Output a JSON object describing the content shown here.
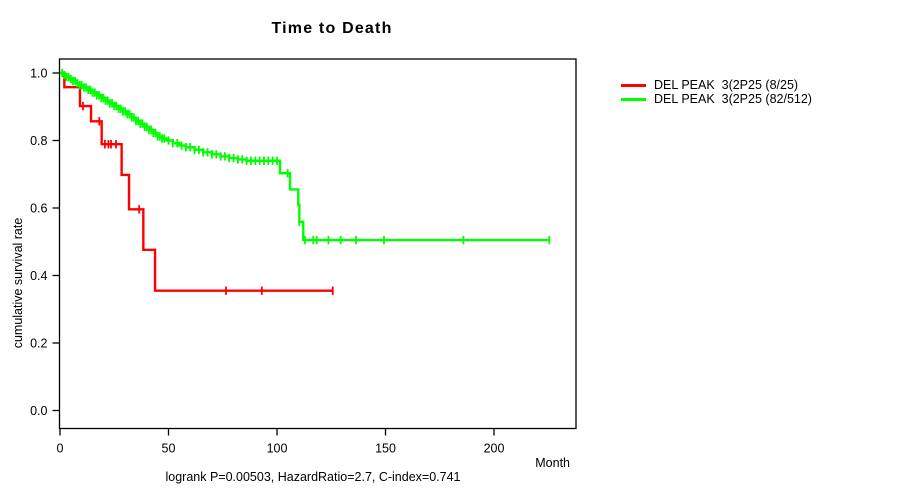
{
  "title": "Time to Death",
  "x_axis": {
    "label": "Month",
    "tick_labels": [
      "0",
      "50",
      "100",
      "150",
      "200"
    ],
    "tick_values": [
      0,
      50,
      100,
      150,
      200
    ]
  },
  "y_axis": {
    "label": "cumulative survival rate",
    "tick_labels": [
      "1.0",
      "0.8",
      "0.6",
      "0.4",
      "0.2",
      "0.0"
    ],
    "tick_values": [
      1.0,
      0.8,
      0.6,
      0.4,
      0.2,
      0.0
    ]
  },
  "footer": "logrank P=0.00503, HazardRatio=2.7, C-index=0.741",
  "legend": [
    {
      "label": "DEL PEAK  3(2P25 (8/25)",
      "color": "#ff0000"
    },
    {
      "label": "DEL PEAK  3(2P25 (82/512)",
      "color": "#00ff00"
    }
  ],
  "chart_data": {
    "type": "line",
    "subtype": "kaplan-meier-step",
    "title": "Time to Death",
    "xlabel": "Month",
    "ylabel": "cumulative survival rate",
    "xlim": [
      0,
      238
    ],
    "ylim": [
      0.0,
      1.0
    ],
    "grid": false,
    "legend_position": "right-outside",
    "annotation": "logrank P=0.00503, HazardRatio=2.7, C-index=0.741",
    "series": [
      {
        "name": "DEL PEAK  3(2P25 (8/25)",
        "color": "#ff0000",
        "events_total": "8/25",
        "steps": [
          [
            0,
            1.0
          ],
          [
            2,
            0.958
          ],
          [
            9.2,
            0.902
          ],
          [
            14.3,
            0.857
          ],
          [
            19.2,
            0.789
          ],
          [
            28.4,
            0.698
          ],
          [
            31.8,
            0.596
          ],
          [
            38.4,
            0.476
          ],
          [
            43.8,
            0.355
          ],
          [
            125.7,
            0.355
          ]
        ],
        "censor_times": [
          10.6,
          18.1,
          20.7,
          22.3,
          23.5,
          25.8,
          36.5,
          76.5,
          93,
          125.7
        ]
      },
      {
        "name": "DEL PEAK  3(2P25 (82/512)",
        "color": "#00ff00",
        "events_total": "82/512",
        "steps": [
          [
            0,
            1.0
          ],
          [
            1.5,
            0.994
          ],
          [
            3,
            0.988
          ],
          [
            4.5,
            0.982
          ],
          [
            6,
            0.976
          ],
          [
            7.5,
            0.97
          ],
          [
            9,
            0.964
          ],
          [
            11,
            0.957
          ],
          [
            13,
            0.95
          ],
          [
            15,
            0.942
          ],
          [
            17,
            0.934
          ],
          [
            19,
            0.926
          ],
          [
            21,
            0.918
          ],
          [
            23,
            0.91
          ],
          [
            25,
            0.902
          ],
          [
            27,
            0.894
          ],
          [
            29,
            0.886
          ],
          [
            31,
            0.878
          ],
          [
            33,
            0.868
          ],
          [
            35,
            0.858
          ],
          [
            37,
            0.85
          ],
          [
            39,
            0.84
          ],
          [
            41,
            0.832
          ],
          [
            43,
            0.822
          ],
          [
            45,
            0.812
          ],
          [
            47,
            0.806
          ],
          [
            49,
            0.8
          ],
          [
            52,
            0.792
          ],
          [
            55,
            0.785
          ],
          [
            58,
            0.78
          ],
          [
            62,
            0.772
          ],
          [
            66,
            0.765
          ],
          [
            70,
            0.759
          ],
          [
            74,
            0.753
          ],
          [
            78,
            0.748
          ],
          [
            82,
            0.744
          ],
          [
            86,
            0.74
          ],
          [
            101.4,
            0.703
          ],
          [
            106,
            0.655
          ],
          [
            109.8,
            0.609
          ],
          [
            110.3,
            0.559
          ],
          [
            112.1,
            0.505
          ],
          [
            225.5,
            0.505
          ]
        ],
        "censor_times": [
          1,
          2,
          3,
          4,
          5,
          6,
          7,
          8,
          9,
          10,
          11,
          12,
          13,
          14,
          15,
          16,
          17,
          18,
          19,
          20,
          21,
          22,
          23,
          24,
          25,
          26,
          27,
          28,
          29,
          30,
          31,
          32,
          33,
          34,
          35,
          36,
          37,
          38,
          39,
          40,
          41,
          42,
          43,
          44,
          45,
          46,
          47,
          48,
          50,
          52,
          54,
          56,
          58,
          60,
          62,
          64,
          66,
          68,
          70,
          72,
          74,
          76,
          78,
          80,
          82,
          84,
          86,
          88,
          90,
          92,
          94,
          96,
          98,
          100,
          104.9,
          110.3,
          112.9,
          116.7,
          118.3,
          123.7,
          129.3,
          136.4,
          149.3,
          185.9,
          225.5
        ]
      }
    ]
  }
}
